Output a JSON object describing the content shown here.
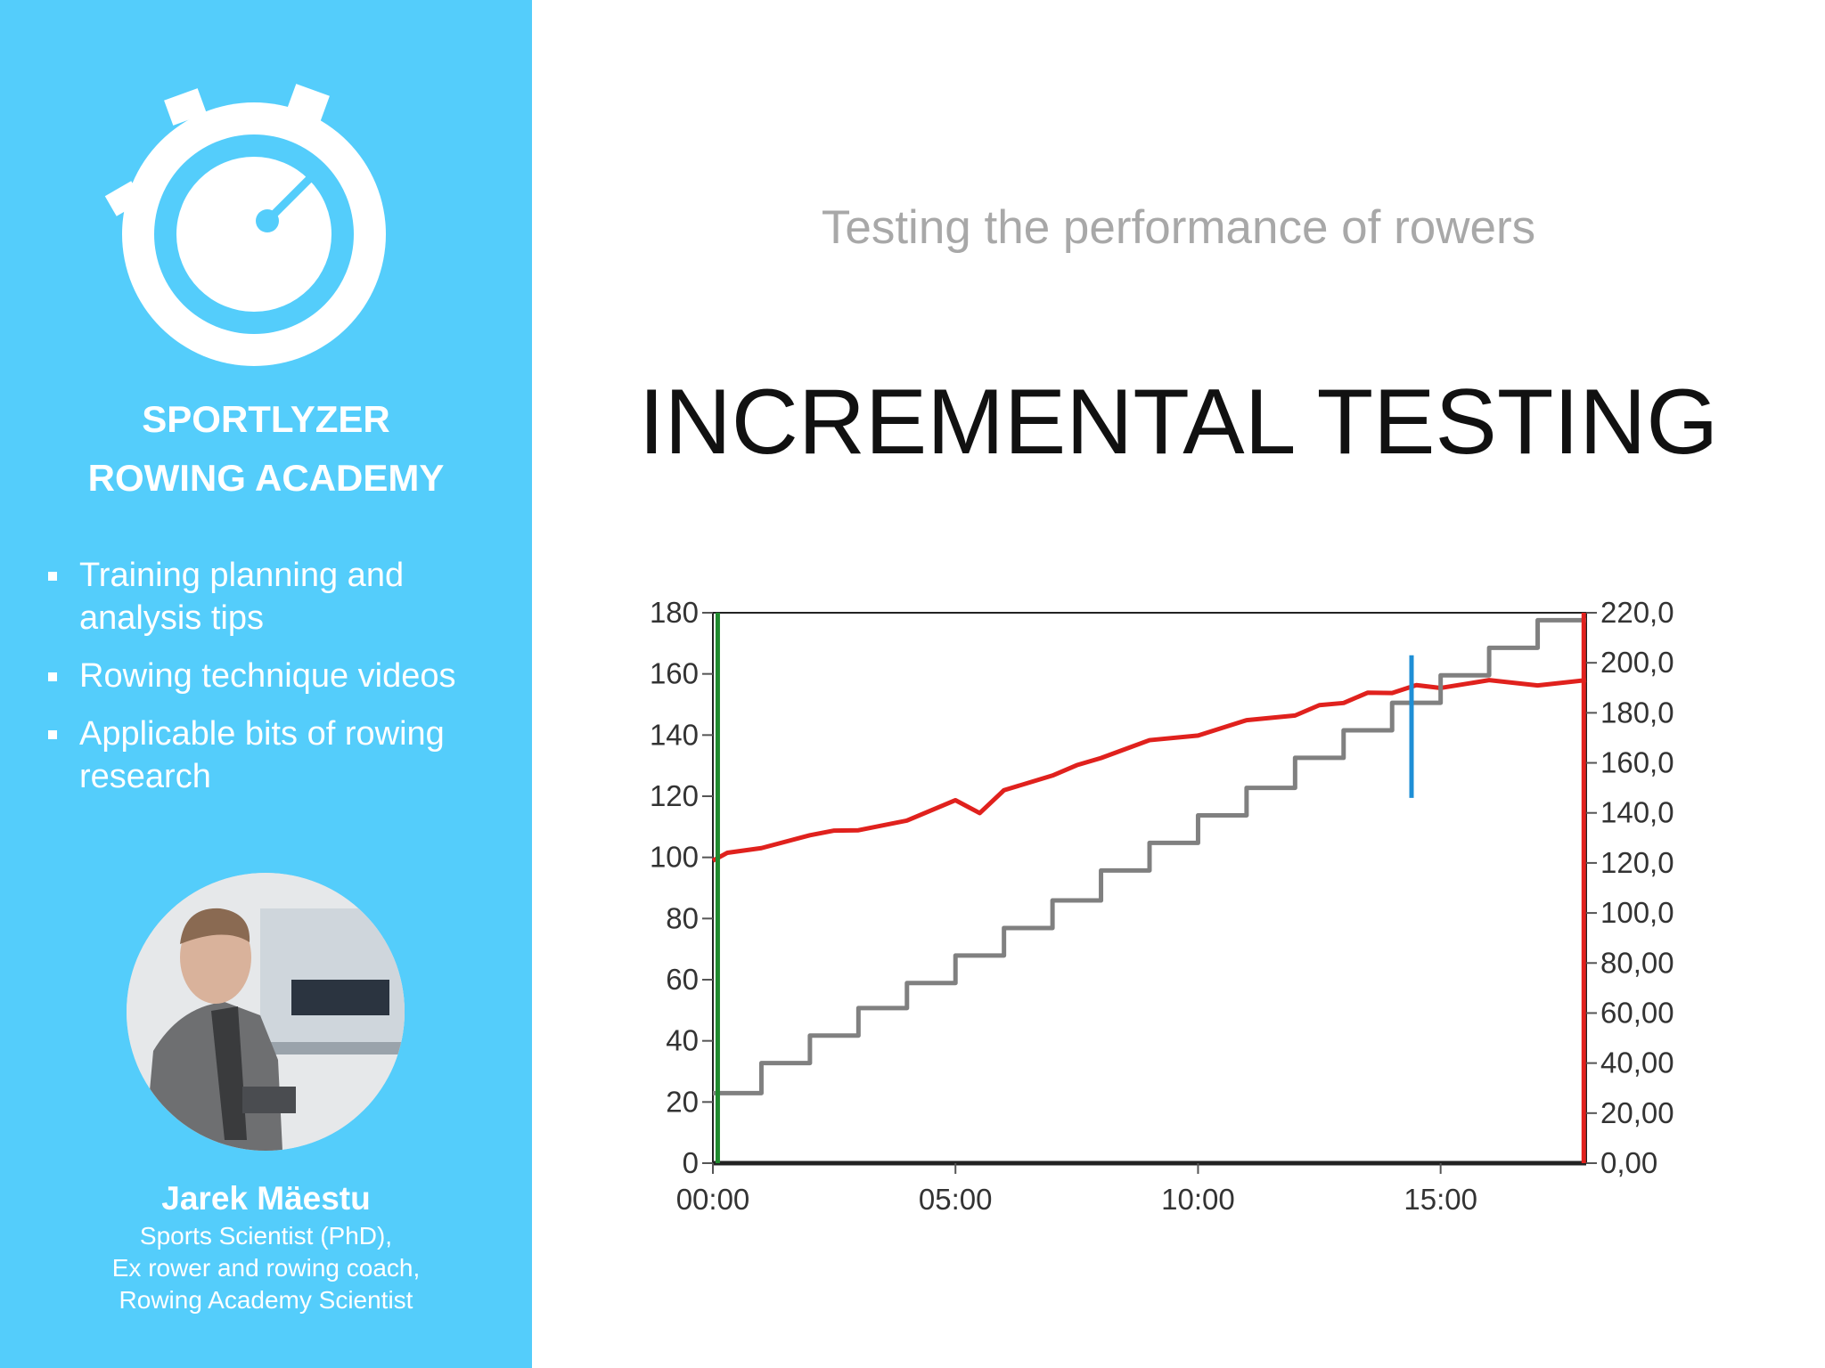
{
  "sidebar": {
    "brand_line1": "SPORTLYZER",
    "brand_line2": "ROWING ACADEMY",
    "logo_icon": "stopwatch-icon",
    "features": [
      {
        "line1": "Training planning and",
        "line2": "analysis tips"
      },
      {
        "line1": "Rowing technique videos",
        "line2": ""
      },
      {
        "line1": "Applicable bits of rowing",
        "line2": "research"
      }
    ],
    "author": {
      "name": "Jarek Mäestu",
      "role_line1": "Sports Scientist (PhD),",
      "role_line2": "Ex rower and rowing coach,",
      "role_line3": "Rowing Academy Scientist"
    }
  },
  "main": {
    "subtitle": "Testing the performance of rowers",
    "title": "INCREMENTAL TESTING"
  },
  "colors": {
    "sidebar_bg": "#54cdfb",
    "heart_rate": "#e0211d",
    "power": "#808080",
    "marker": "#1e8fd6",
    "start_marker": "#1f8a2e"
  },
  "chart_data": {
    "type": "line",
    "title": "",
    "xlabel": "",
    "ylabel": "",
    "x_ticks": [
      "00:00",
      "05:00",
      "10:00",
      "15:00"
    ],
    "xlim": [
      0,
      18
    ],
    "y_left": {
      "ticks": [
        "0",
        "20",
        "40",
        "60",
        "80",
        "100",
        "120",
        "140",
        "160",
        "180"
      ],
      "range": [
        0,
        180
      ]
    },
    "y_right": {
      "ticks": [
        "0,00",
        "20,00",
        "40,00",
        "60,00",
        "80,00",
        "100,0",
        "120,0",
        "140,0",
        "160,0",
        "180,0",
        "200,0",
        "220,0"
      ],
      "range": [
        0,
        220
      ]
    },
    "grid": false,
    "legend": "none",
    "series": [
      {
        "axis": "right",
        "color": "#e0211d",
        "x": [
          0,
          0.3,
          1,
          2,
          2.5,
          3,
          4,
          5,
          5.5,
          6,
          7,
          7.5,
          8,
          9,
          10,
          11,
          12,
          12.5,
          13,
          13.5,
          14,
          14.5,
          15,
          16,
          17,
          18
        ],
        "values": [
          122,
          123,
          127,
          130,
          134,
          132,
          138,
          144,
          141,
          148,
          156,
          158,
          163,
          168,
          172,
          176,
          180,
          182,
          185,
          187,
          189,
          190,
          191,
          192,
          192,
          192
        ]
      },
      {
        "axis": "right",
        "color": "#808080",
        "step": true,
        "x": [
          0,
          1,
          2,
          3,
          4,
          5,
          6,
          7,
          8,
          9,
          10,
          11,
          12,
          13,
          14,
          15,
          16,
          17,
          18
        ],
        "values": [
          28,
          40,
          51,
          62,
          72,
          83,
          94,
          105,
          117,
          128,
          139,
          150,
          162,
          173,
          184,
          195,
          206,
          217,
          217
        ]
      }
    ],
    "markers": [
      {
        "x": 0.1,
        "color": "#1f8a2e"
      },
      {
        "x": 14.4,
        "color": "#1e8fd6",
        "y_from": 146,
        "y_to": 203
      },
      {
        "x": 17.95,
        "color": "#e0211d"
      }
    ]
  }
}
